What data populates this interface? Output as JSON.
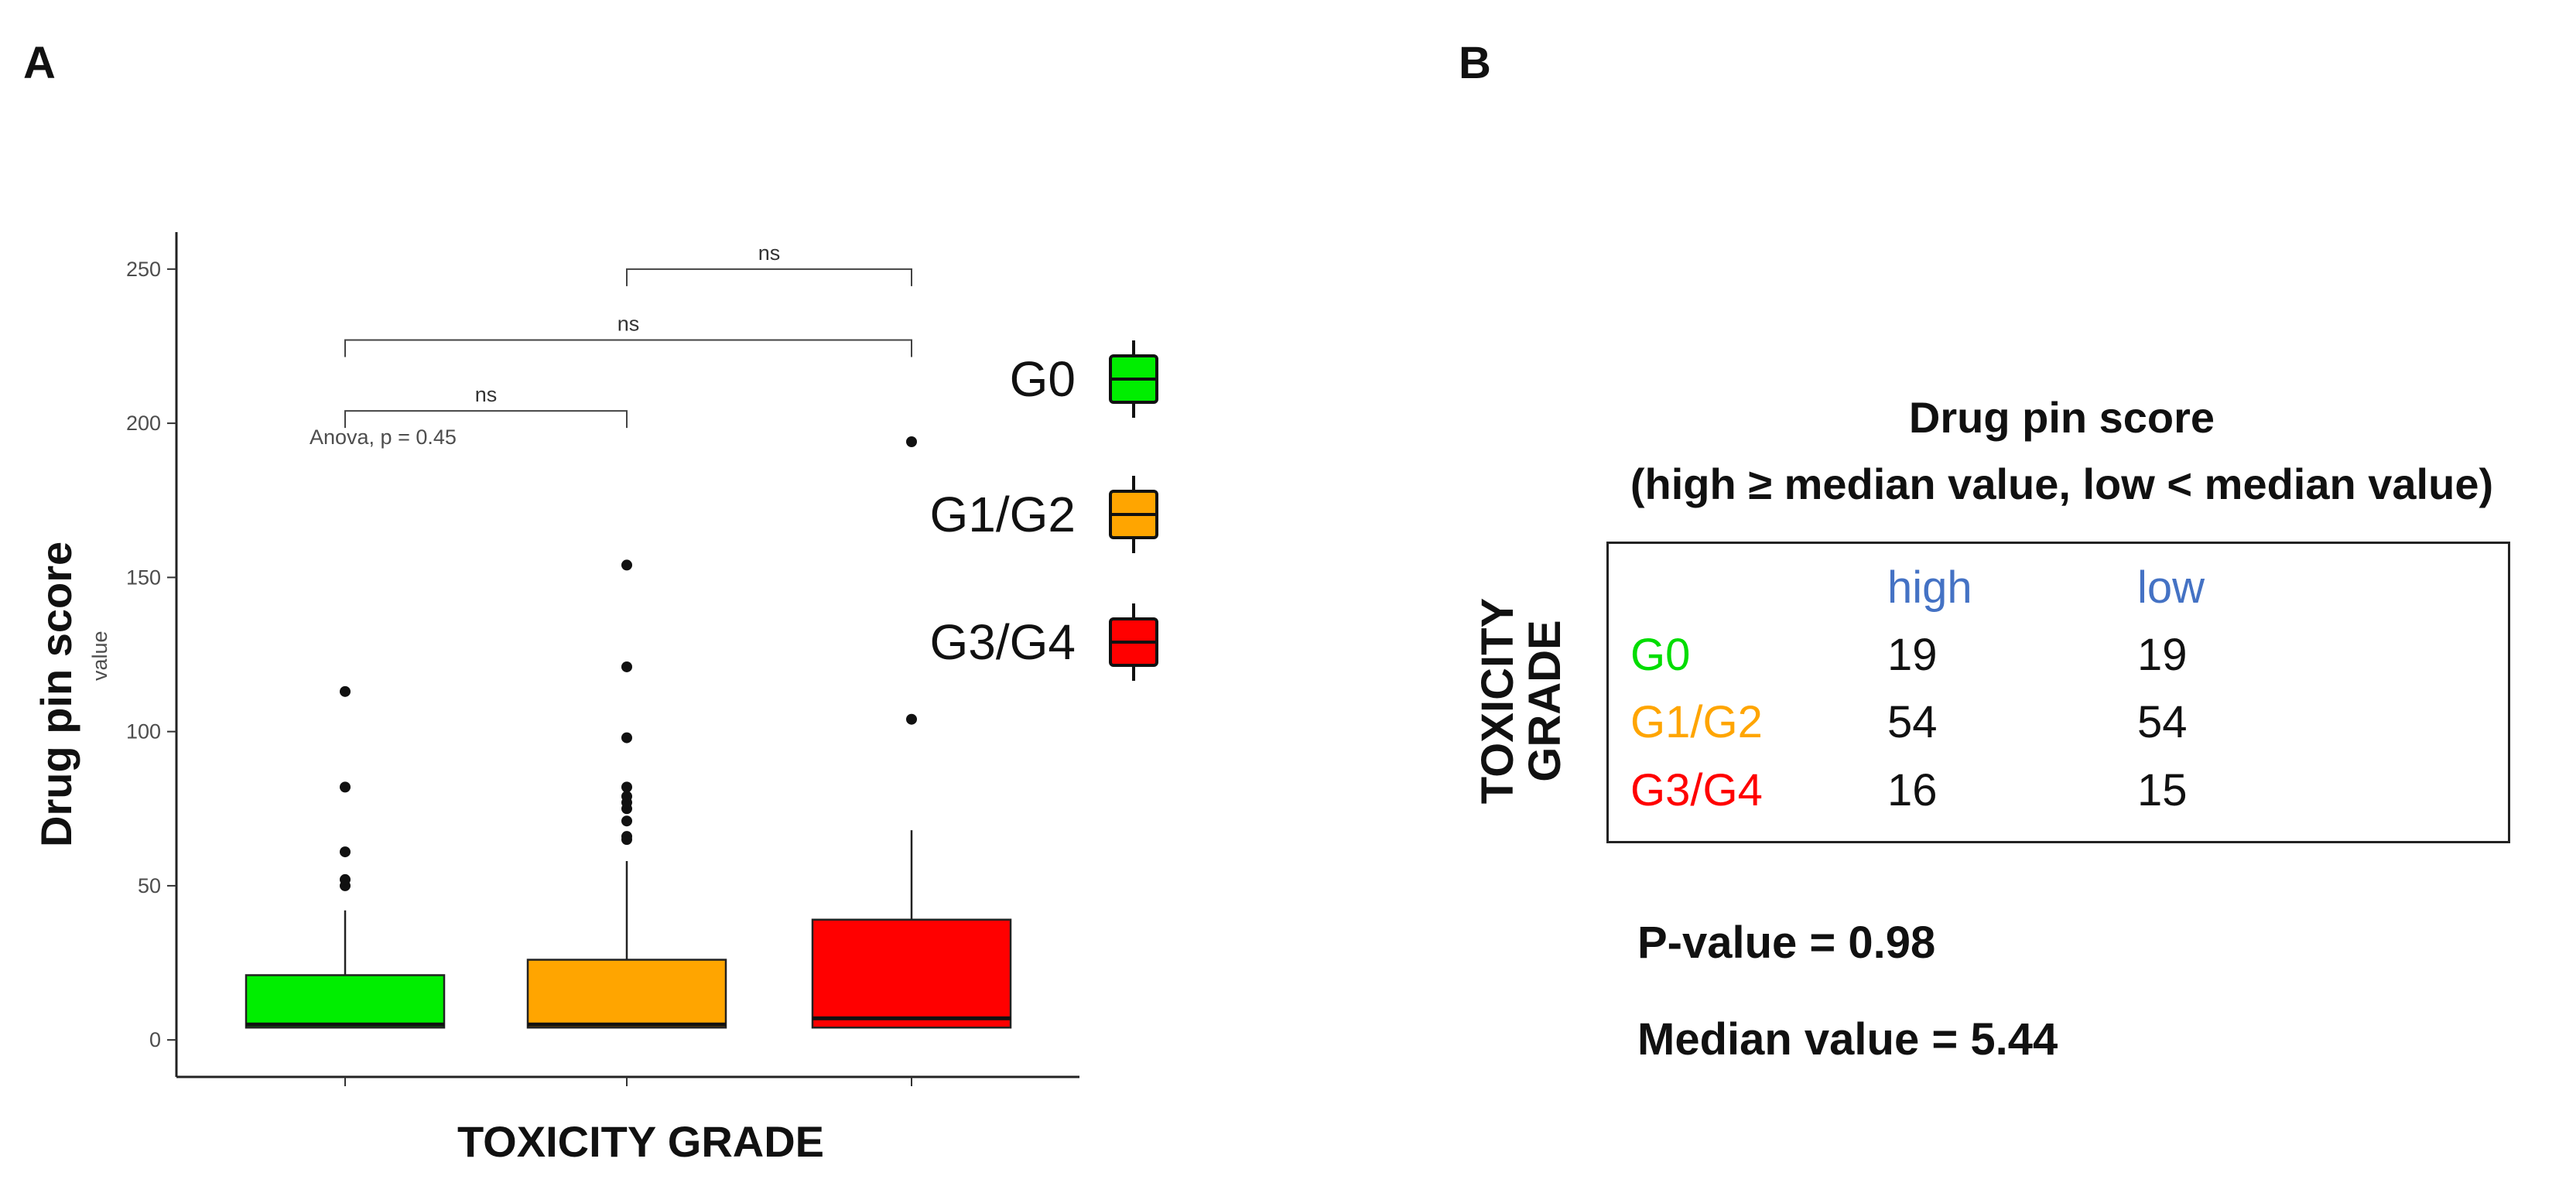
{
  "panels": {
    "a": "A",
    "b": "B"
  },
  "chart_data": {
    "type": "boxplot",
    "ylabel": "Drug pin score",
    "ylabel_sub": "value",
    "xlabel": "TOXICITY GRADE",
    "ylim": [
      -12,
      262
    ],
    "yticks": [
      0,
      50,
      100,
      150,
      200,
      250
    ],
    "annotation": "Anova, p = 0.45",
    "colors": {
      "G0": "#00ee00",
      "G1/G2": "#ffa500",
      "G3/G4": "#ff0000"
    },
    "groups": [
      {
        "name": "G0",
        "whisker_low": 4,
        "q1": 4,
        "median": 5,
        "q3": 21,
        "whisker_high": 42,
        "outliers": [
          50,
          52,
          61,
          82,
          113
        ]
      },
      {
        "name": "G1/G2",
        "whisker_low": 4,
        "q1": 4,
        "median": 5,
        "q3": 26,
        "whisker_high": 58,
        "outliers": [
          65,
          66,
          71,
          75,
          77,
          79,
          82,
          98,
          121,
          154
        ]
      },
      {
        "name": "G3/G4",
        "whisker_low": 4,
        "q1": 4,
        "median": 7,
        "q3": 39,
        "whisker_high": 68,
        "outliers": [
          104,
          194
        ]
      }
    ],
    "comparisons": [
      {
        "from": 0,
        "to": 1,
        "y": 204,
        "label": "ns"
      },
      {
        "from": 0,
        "to": 2,
        "y": 227,
        "label": "ns"
      },
      {
        "from": 1,
        "to": 2,
        "y": 250,
        "label": "ns"
      }
    ],
    "legend": [
      "G0",
      "G1/G2",
      "G3/G4"
    ]
  },
  "table": {
    "title_line1": "Drug pin score",
    "title_line2": "(high ≥ median value, low < median value)",
    "side_title_1": "TOXICITY",
    "side_title_2": "GRADE",
    "headers": [
      "high",
      "low"
    ],
    "rows": [
      {
        "label": "G0",
        "high": "19",
        "low": "19"
      },
      {
        "label": "G1/G2",
        "high": "54",
        "low": "54"
      },
      {
        "label": "G3/G4",
        "high": "16",
        "low": "15"
      }
    ]
  },
  "stats": {
    "p_value": "P-value = 0.98",
    "median_value": "Median value = 5.44"
  }
}
